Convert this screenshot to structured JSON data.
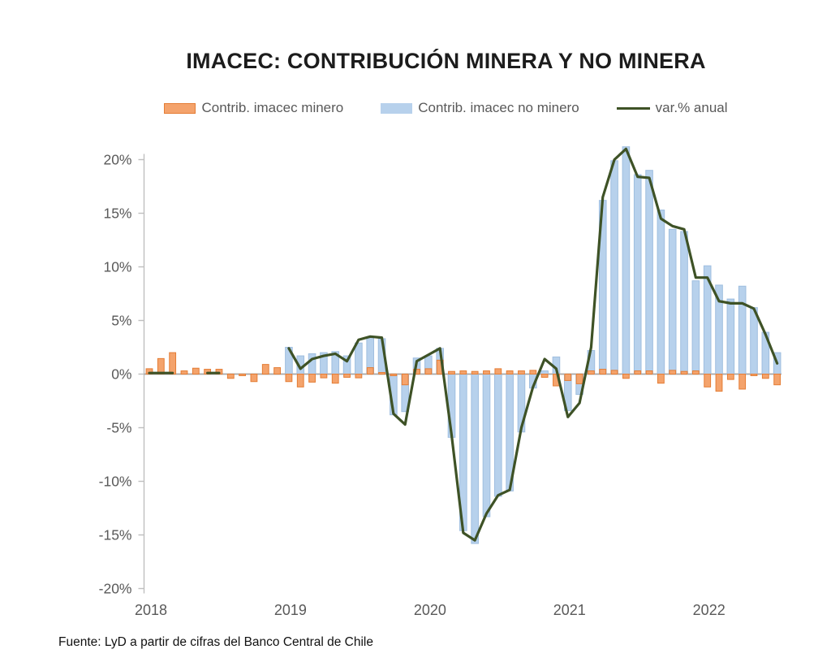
{
  "title": "IMACEC: CONTRIBUCIÓN MINERA Y NO MINERA",
  "footer": "Fuente: LyD a partir de cifras del Banco Central de Chile",
  "legend": {
    "items": [
      {
        "label": "Contrib. imacec minero"
      },
      {
        "label": "Contrib. imacec no minero"
      },
      {
        "label": "var.% anual"
      }
    ]
  },
  "colors": {
    "minero_fill": "#F4A36C",
    "minero_border": "#E47D35",
    "no_minero_fill": "#B7D1EC",
    "no_minero_border": "#9FBEDF",
    "line": "#3E5226",
    "axis": "#BFBFBF",
    "zero_axis": "#A6A6A6",
    "tick_text": "#595959"
  },
  "chart_data": {
    "type": "bar+line",
    "period_start": "2018-01",
    "period_end": "2022-07",
    "x_year_labels": [
      "2018",
      "2019",
      "2020",
      "2021",
      "2022"
    ],
    "ylim": [
      -20,
      20
    ],
    "ytick_step": 5,
    "ytick_suffix": "%",
    "grid": false,
    "legend_position": "top",
    "series": [
      {
        "name": "Contrib. imacec minero",
        "type": "bar",
        "values": [
          0.5,
          1.45,
          2.0,
          0.3,
          0.55,
          0.45,
          0.45,
          -0.4,
          -0.15,
          -0.7,
          0.9,
          0.6,
          -0.7,
          -1.2,
          -0.75,
          -0.35,
          -0.85,
          -0.3,
          -0.35,
          0.6,
          0.15,
          -0.15,
          -1.0,
          0.45,
          0.5,
          1.3,
          0.25,
          0.3,
          0.25,
          0.3,
          0.5,
          0.3,
          0.3,
          0.35,
          -0.3,
          -1.1,
          -0.6,
          -0.9,
          0.3,
          0.45,
          0.35,
          -0.4,
          0.3,
          0.3,
          -0.85,
          0.35,
          0.25,
          0.3,
          -1.2,
          -1.6,
          -0.5,
          -1.4,
          -0.15,
          -0.4,
          -1.0
        ]
      },
      {
        "name": "Contrib. imacec no minero",
        "type": "bar",
        "values": [
          null,
          null,
          null,
          null,
          null,
          null,
          null,
          null,
          null,
          null,
          null,
          null,
          2.5,
          1.7,
          1.9,
          2.0,
          2.1,
          1.7,
          2.9,
          3.4,
          3.3,
          -3.8,
          -3.5,
          1.5,
          1.7,
          2.4,
          -5.9,
          -14.6,
          -15.8,
          -13.3,
          -11.4,
          -10.9,
          -5.4,
          -1.3,
          0.3,
          1.6,
          -3.4,
          -1.9,
          2.2,
          16.2,
          19.9,
          21.2,
          18.6,
          19.0,
          15.3,
          13.5,
          13.3,
          8.7,
          10.1,
          8.3,
          7.0,
          8.2,
          6.2,
          3.9,
          2.0
        ]
      },
      {
        "name": "var.% anual",
        "type": "line",
        "values": [
          0.1,
          0.1,
          0.1,
          null,
          null,
          0.1,
          0.1,
          null,
          null,
          null,
          null,
          null,
          2.4,
          0.5,
          1.4,
          1.7,
          1.9,
          1.2,
          3.2,
          3.5,
          3.4,
          -3.7,
          -4.7,
          1.2,
          1.8,
          2.4,
          -5.7,
          -14.8,
          -15.5,
          -13.0,
          -11.3,
          -10.8,
          -5.0,
          -1.2,
          1.4,
          0.5,
          -4.0,
          -2.7,
          2.5,
          16.5,
          20.0,
          21.0,
          18.4,
          18.3,
          14.5,
          13.8,
          13.5,
          9.0,
          9.0,
          6.8,
          6.6,
          6.6,
          6.1,
          3.7,
          1.0
        ]
      }
    ]
  }
}
